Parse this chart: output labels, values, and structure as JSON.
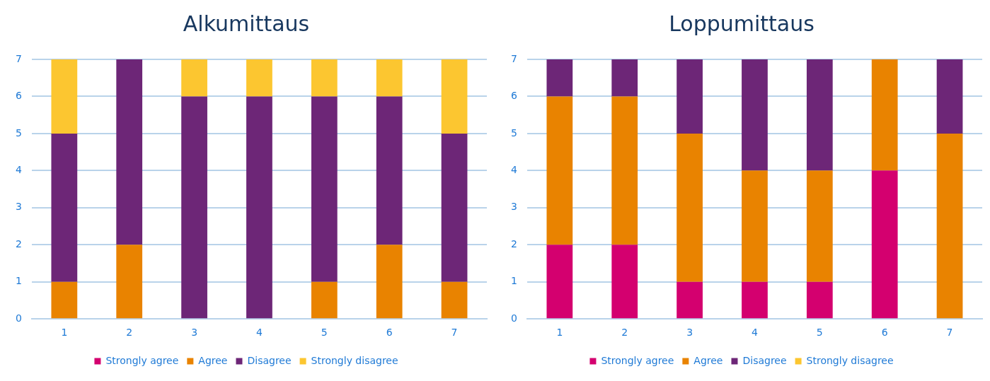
{
  "chart_data": [
    {
      "type": "bar",
      "title": "Alkumittaus",
      "categories": [
        "1",
        "2",
        "3",
        "4",
        "5",
        "6",
        "7"
      ],
      "stacked": true,
      "ylim": [
        0,
        7
      ],
      "yticks": [
        0,
        1,
        2,
        3,
        4,
        5,
        6,
        7
      ],
      "grid": "y",
      "legend": "bottom",
      "series": [
        {
          "name": "Strongly agree",
          "color": "#d4006f",
          "values": [
            0,
            0,
            0,
            0,
            0,
            0,
            0
          ]
        },
        {
          "name": "Agree",
          "color": "#e98300",
          "values": [
            1,
            2,
            0,
            0,
            1,
            2,
            1
          ]
        },
        {
          "name": "Disagree",
          "color": "#6d2677",
          "values": [
            4,
            5,
            6,
            6,
            5,
            4,
            4
          ]
        },
        {
          "name": "Strongly disagree",
          "color": "#fcc630",
          "values": [
            2,
            0,
            1,
            1,
            1,
            1,
            2
          ]
        }
      ]
    },
    {
      "type": "bar",
      "title": "Loppumittaus",
      "categories": [
        "1",
        "2",
        "3",
        "4",
        "5",
        "6",
        "7"
      ],
      "stacked": true,
      "ylim": [
        0,
        7
      ],
      "yticks": [
        0,
        1,
        2,
        3,
        4,
        5,
        6,
        7
      ],
      "grid": "y",
      "legend": "bottom",
      "series": [
        {
          "name": "Strongly agree",
          "color": "#d4006f",
          "values": [
            2,
            2,
            1,
            1,
            1,
            4,
            0
          ]
        },
        {
          "name": "Agree",
          "color": "#e98300",
          "values": [
            4,
            4,
            4,
            3,
            3,
            3,
            5
          ]
        },
        {
          "name": "Disagree",
          "color": "#6d2677",
          "values": [
            1,
            1,
            2,
            3,
            3,
            0,
            2
          ]
        },
        {
          "name": "Strongly disagree",
          "color": "#fcc630",
          "values": [
            0,
            0,
            0,
            0,
            0,
            0,
            0
          ]
        }
      ]
    }
  ]
}
